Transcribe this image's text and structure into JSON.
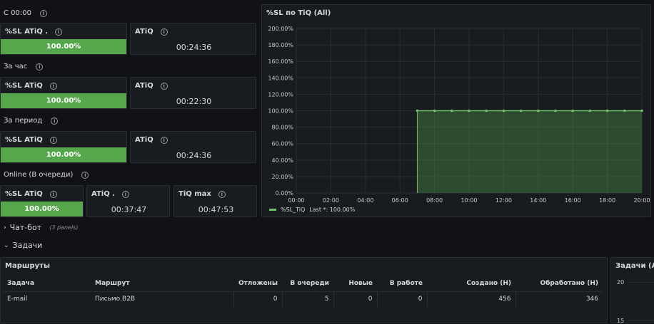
{
  "sections": {
    "c00": "С 00:00",
    "hour": "За час",
    "period": "За период",
    "online": "Online (В очереди)"
  },
  "stats": {
    "c00": {
      "sl_title": "%SL ATiQ .",
      "sl_value": "100.00%",
      "atiq_title": "ATiQ",
      "atiq_value": "00:24:36"
    },
    "hour": {
      "sl_title": "%SL ATiQ",
      "sl_value": "100.00%",
      "atiq_title": "ATiQ",
      "atiq_value": "00:22:30"
    },
    "period": {
      "sl_title": "%SL ATiQ",
      "sl_value": "100.00%",
      "atiq_title": "ATiQ",
      "atiq_value": "00:24:36"
    },
    "online": {
      "sl_title": "%SL ATiQ",
      "sl_value": "100.00%",
      "atiq_title": "ATiQ .",
      "atiq_value": "00:37:47",
      "tiqmax_title": "TiQ max",
      "tiqmax_value": "00:47:53"
    }
  },
  "rows": {
    "chatbot": {
      "label": "Чат-бот",
      "meta": "(3 panels)"
    },
    "tasks": {
      "label": "Задачи"
    }
  },
  "routes_table": {
    "title": "Маршруты",
    "headers": [
      "Задача",
      "Маршрут",
      "Отложены",
      "В очереди",
      "Новые",
      "В работе",
      "Создано (Н)",
      "Обработано (Н)"
    ],
    "rows": [
      [
        "E-mail",
        "Письмо.B2B",
        "0",
        "5",
        "0",
        "0",
        "456",
        "346"
      ]
    ]
  },
  "tasks_panel": {
    "title": "Задачи (All)",
    "ticks": [
      "20",
      "15"
    ]
  },
  "colors": {
    "accent_green": "#56a64b",
    "line_green": "#73bf69",
    "bg": "#111217",
    "panel": "#181b1f"
  },
  "chart_data": {
    "type": "area",
    "title": "%SL по TiQ (All)",
    "y_ticks": [
      "200.00%",
      "180.00%",
      "160.00%",
      "140.00%",
      "120.00%",
      "100.00%",
      "80.00%",
      "60.00%",
      "40.00%",
      "20.00%",
      "0.00%"
    ],
    "x_ticks": [
      "00:00",
      "02:00",
      "04:00",
      "06:00",
      "08:00",
      "10:00",
      "12:00",
      "14:00",
      "16:00",
      "18:00",
      "20:00"
    ],
    "ylim": [
      0,
      200
    ],
    "xlim": [
      0,
      20
    ],
    "series": [
      {
        "name": "%SL_TiQ",
        "x": [
          7,
          8,
          9,
          10,
          11,
          12,
          13,
          14,
          15,
          16,
          17,
          18,
          19,
          20
        ],
        "values": [
          100,
          100,
          100,
          100,
          100,
          100,
          100,
          100,
          100,
          100,
          100,
          100,
          100,
          100
        ]
      }
    ],
    "legend": {
      "label": "%SL_TiQ",
      "stat": "Last *: 100.00%",
      "placement": "bottom-left"
    },
    "grid": true
  }
}
